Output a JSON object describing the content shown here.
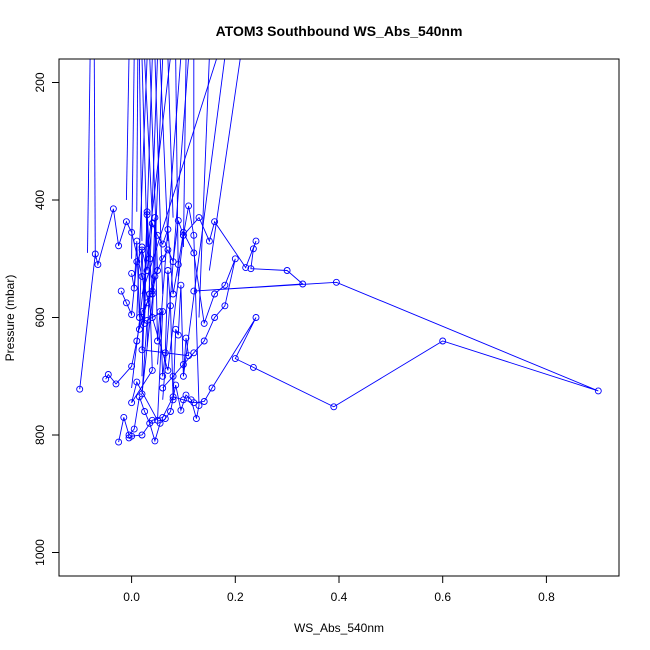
{
  "chart_data": {
    "type": "line",
    "title": "ATOM3 Southbound WS_Abs_540nm",
    "xlabel": "WS_Abs_540nm",
    "ylabel": "Pressure (mbar)",
    "xlim": [
      -0.14,
      0.94
    ],
    "ylim": [
      1040,
      160
    ],
    "y_reversed": true,
    "x_ticks": [
      0.0,
      0.2,
      0.4,
      0.6,
      0.8
    ],
    "x_tick_labels": [
      "0.0",
      "0.2",
      "0.4",
      "0.6",
      "0.8"
    ],
    "y_ticks": [
      200,
      400,
      600,
      800,
      1000
    ],
    "y_tick_labels": [
      "200",
      "400",
      "600",
      "800",
      "1000"
    ],
    "grid": false,
    "legend": "none",
    "series_color": "#0000ff",
    "marker": "open-circle",
    "series": [
      {
        "x": [
          -0.1,
          -0.07,
          -0.065,
          -0.035,
          -0.025,
          -0.01,
          0.0,
          0.02,
          0.04,
          0.07,
          0.1,
          0.13,
          0.15,
          0.16,
          0.22,
          0.24,
          0.235,
          0.23,
          0.3,
          0.33,
          0.12,
          0.395,
          0.9,
          0.6,
          0.39,
          0.235,
          0.2,
          0.24,
          0.155,
          0.14,
          0.12,
          0.1,
          0.08,
          0.06,
          0.04,
          0.02,
          0.0,
          -0.005
        ],
        "y": [
          722,
          492,
          510,
          415,
          478,
          437,
          455,
          530,
          600,
          690,
          460,
          430,
          470,
          437,
          515,
          470,
          483,
          517,
          520,
          543,
          555,
          540,
          725,
          640,
          752,
          685,
          670,
          600,
          720,
          743,
          745,
          740,
          735,
          770,
          775,
          800,
          802,
          805
        ]
      },
      {
        "x": [
          -0.05,
          -0.045,
          -0.03,
          0.0,
          0.01,
          0.02,
          0.03,
          0.04,
          0.05,
          0.06,
          0.07,
          0.08,
          0.09,
          0.1,
          0.11,
          0.12,
          0.13,
          0.125,
          0.115,
          0.105,
          0.095,
          0.085,
          0.075,
          0.065,
          0.055,
          0.045,
          0.035,
          0.025,
          0.015,
          0.005,
          -0.005,
          -0.015,
          -0.025
        ],
        "y": [
          705,
          697,
          713,
          683,
          640,
          590,
          575,
          555,
          520,
          500,
          485,
          505,
          435,
          460,
          410,
          460,
          750,
          772,
          740,
          732,
          758,
          715,
          760,
          772,
          780,
          810,
          780,
          760,
          735,
          790,
          800,
          770,
          812
        ]
      },
      {
        "x": [
          0.0,
          0.005,
          0.01,
          0.015,
          0.02,
          0.025,
          0.03,
          0.035,
          0.04,
          0.045,
          0.05,
          0.055,
          0.06,
          0.065,
          0.07,
          0.075,
          0.08,
          0.085,
          0.09,
          0.095,
          0.1,
          0.105,
          0.11,
          0.02,
          0.03,
          0.04,
          0.0,
          0.01,
          0.05,
          0.06,
          0.03,
          0.02,
          0.045,
          0.015,
          0.035
        ],
        "y": [
          525,
          550,
          470,
          600,
          480,
          610,
          420,
          500,
          560,
          430,
          640,
          590,
          700,
          660,
          520,
          580,
          740,
          620,
          630,
          545,
          700,
          635,
          665,
          655,
          425,
          690,
          745,
          710,
          775,
          590,
          605,
          730,
          530,
          620,
          560
        ]
      },
      {
        "x": [
          -0.02,
          -0.01,
          0.0,
          0.01,
          0.02,
          0.03,
          0.04,
          0.05,
          0.06,
          0.07,
          0.08,
          0.09,
          0.1,
          0.12,
          0.14,
          0.16,
          0.18,
          0.2,
          0.18,
          0.16,
          0.14,
          0.12,
          0.1,
          0.08,
          0.06
        ],
        "y": [
          555,
          575,
          595,
          505,
          485,
          520,
          440,
          460,
          475,
          450,
          560,
          510,
          455,
          490,
          610,
          560,
          545,
          500,
          580,
          600,
          640,
          660,
          680,
          700,
          720
        ]
      }
    ],
    "upward_extensions": [
      {
        "x": -0.085,
        "y": 490,
        "x_top": -0.08
      },
      {
        "x": -0.07,
        "y": 500,
        "x_top": -0.072
      },
      {
        "x": -0.01,
        "y": 400,
        "x_top": -0.005
      },
      {
        "x": 0.0,
        "y": 500,
        "x_top": 0.005
      },
      {
        "x": 0.01,
        "y": 420,
        "x_top": 0.012
      },
      {
        "x": 0.02,
        "y": 470,
        "x_top": 0.015
      },
      {
        "x": 0.03,
        "y": 480,
        "x_top": 0.02
      },
      {
        "x": 0.04,
        "y": 430,
        "x_top": 0.025
      },
      {
        "x": 0.01,
        "y": 600,
        "x_top": 0.03
      },
      {
        "x": 0.05,
        "y": 520,
        "x_top": 0.035
      },
      {
        "x": 0.02,
        "y": 700,
        "x_top": 0.04
      },
      {
        "x": 0.06,
        "y": 560,
        "x_top": 0.045
      },
      {
        "x": 0.03,
        "y": 650,
        "x_top": 0.05
      },
      {
        "x": 0.07,
        "y": 470,
        "x_top": 0.055
      },
      {
        "x": 0.04,
        "y": 600,
        "x_top": 0.06
      },
      {
        "x": 0.08,
        "y": 430,
        "x_top": 0.07
      },
      {
        "x": 0.0,
        "y": 720,
        "x_top": 0.075
      },
      {
        "x": 0.09,
        "y": 530,
        "x_top": 0.085
      },
      {
        "x": 0.05,
        "y": 680,
        "x_top": 0.095
      },
      {
        "x": 0.1,
        "y": 480,
        "x_top": 0.105
      },
      {
        "x": 0.06,
        "y": 740,
        "x_top": 0.11
      },
      {
        "x": 0.12,
        "y": 440,
        "x_top": 0.12
      },
      {
        "x": 0.13,
        "y": 600,
        "x_top": 0.15
      },
      {
        "x": 0.02,
        "y": 560,
        "x_top": 0.165
      },
      {
        "x": 0.1,
        "y": 700,
        "x_top": 0.18
      },
      {
        "x": 0.15,
        "y": 520,
        "x_top": 0.21
      }
    ]
  }
}
